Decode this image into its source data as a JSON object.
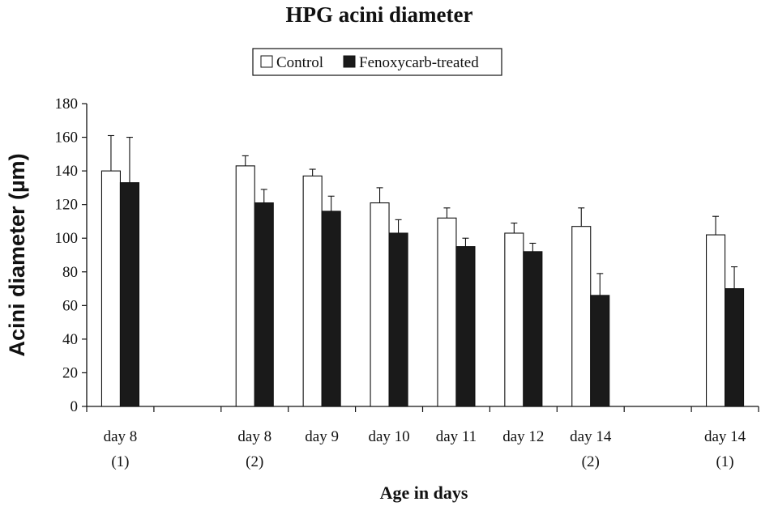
{
  "chart_data": {
    "type": "bar",
    "title": "HPG acini diameter",
    "xlabel": "Age in days",
    "ylabel": "Acini diameter (µm)",
    "ylim": [
      0,
      180
    ],
    "yticks": [
      0,
      20,
      40,
      60,
      80,
      100,
      120,
      140,
      160,
      180
    ],
    "grid": false,
    "legend_position": "top",
    "categories": [
      {
        "line1": "day 8",
        "line2": "(1)"
      },
      {
        "line1": "",
        "line2": ""
      },
      {
        "line1": "day 8",
        "line2": "(2)"
      },
      {
        "line1": "day 9",
        "line2": ""
      },
      {
        "line1": "day 10",
        "line2": ""
      },
      {
        "line1": "day 11",
        "line2": ""
      },
      {
        "line1": "day 12",
        "line2": ""
      },
      {
        "line1": "day 14",
        "line2": "(2)"
      },
      {
        "line1": "",
        "line2": ""
      },
      {
        "line1": "day 14",
        "line2": "(1)"
      }
    ],
    "series": [
      {
        "name": "Control",
        "color": "#ffffff",
        "values": [
          140,
          null,
          143,
          137,
          121,
          112,
          103,
          107,
          null,
          102
        ],
        "errors": [
          21,
          null,
          6,
          4,
          9,
          6,
          6,
          11,
          null,
          11
        ]
      },
      {
        "name": "Fenoxycarb-treated",
        "color": "#1a1a1a",
        "values": [
          133,
          null,
          121,
          116,
          103,
          95,
          92,
          66,
          null,
          70
        ],
        "errors": [
          27,
          null,
          8,
          9,
          8,
          5,
          5,
          13,
          null,
          13
        ]
      }
    ]
  }
}
